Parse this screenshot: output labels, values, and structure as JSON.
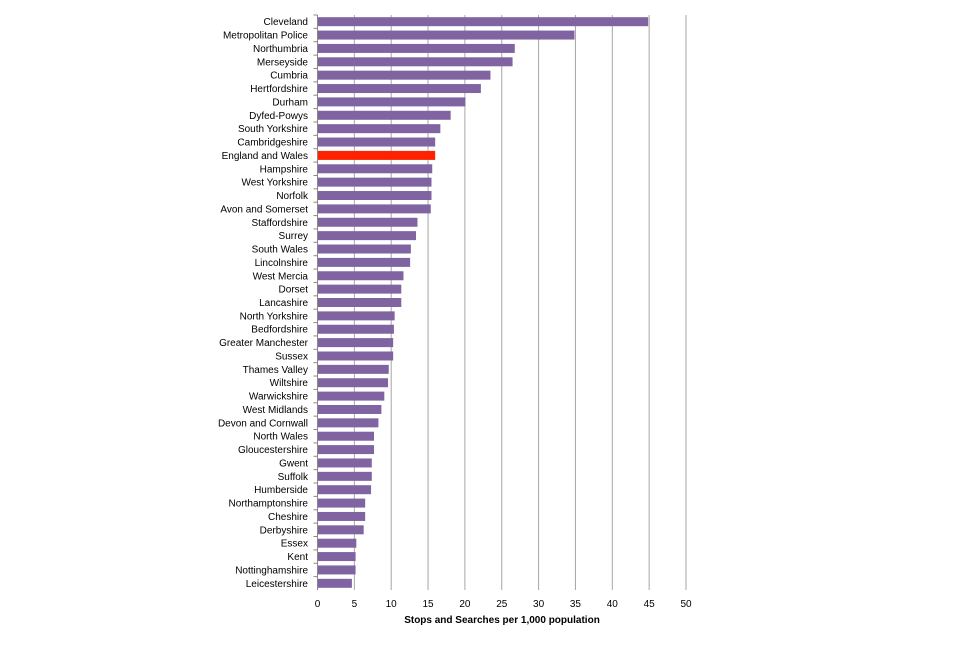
{
  "chart_data": {
    "type": "bar",
    "orientation": "horizontal",
    "title": "",
    "xlabel": "Stops and Searches  per 1,000 population",
    "ylabel": "",
    "xlim": [
      0,
      50
    ],
    "xticks": [
      "0",
      "5",
      "10",
      "15",
      "20",
      "25",
      "30",
      "35",
      "40",
      "45",
      "50"
    ],
    "grid": "vertical",
    "colors": {
      "bar": "#8064a2",
      "highlight": "#ff2200",
      "grid": "#a6a6a6"
    },
    "highlight": "England and Wales",
    "categories": [
      "Cleveland",
      "Metropolitan Police",
      "Northumbria",
      "Merseyside",
      "Cumbria",
      "Hertfordshire",
      "Durham",
      "Dyfed-Powys",
      "South Yorkshire",
      "Cambridgeshire",
      "England and Wales",
      "Hampshire",
      "West Yorkshire",
      "Norfolk",
      "Avon and Somerset",
      "Staffordshire",
      "Surrey",
      "South Wales",
      "Lincolnshire",
      "West Mercia",
      "Dorset",
      "Lancashire",
      "North Yorkshire",
      "Bedfordshire",
      "Greater Manchester",
      "Sussex",
      "Thames Valley",
      "Wiltshire",
      "Warwickshire",
      "West Midlands",
      "Devon and Cornwall",
      "North Wales",
      "Gloucestershire",
      "Gwent",
      "Suffolk",
      "Humberside",
      "Northamptonshire",
      "Cheshire",
      "Derbyshire",
      "Essex",
      "Kent",
      "Nottinghamshire",
      "Leicestershire"
    ],
    "values": [
      44.8,
      34.8,
      26.7,
      26.4,
      23.4,
      22.1,
      20.0,
      18.0,
      16.6,
      15.9,
      15.9,
      15.5,
      15.4,
      15.4,
      15.3,
      13.5,
      13.3,
      12.6,
      12.5,
      11.6,
      11.3,
      11.3,
      10.4,
      10.3,
      10.2,
      10.2,
      9.6,
      9.5,
      9.0,
      8.6,
      8.2,
      7.6,
      7.6,
      7.3,
      7.3,
      7.2,
      6.4,
      6.4,
      6.2,
      5.2,
      5.1,
      5.1,
      4.6
    ]
  }
}
